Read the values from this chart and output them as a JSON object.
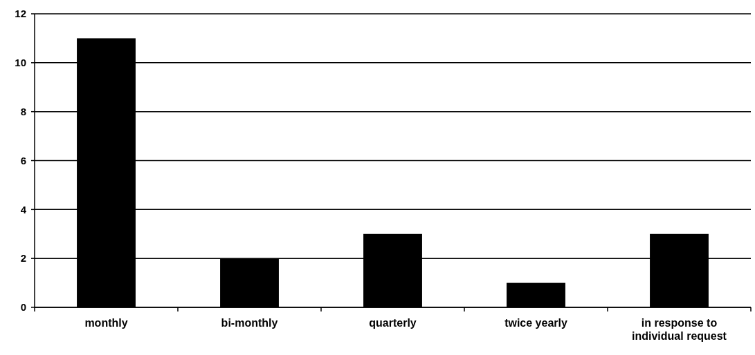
{
  "chart_data": {
    "type": "bar",
    "categories": [
      "monthly",
      "bi-monthly",
      "quarterly",
      "twice yearly",
      "in response to individual request"
    ],
    "values": [
      11,
      2,
      3,
      1,
      3
    ],
    "color": "#000000",
    "ylim": [
      0,
      12
    ],
    "yticks": [
      0,
      2,
      4,
      6,
      8,
      10,
      12
    ],
    "grid": "y"
  }
}
